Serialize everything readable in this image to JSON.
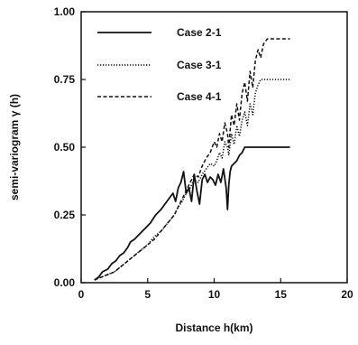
{
  "chart_data": {
    "type": "line",
    "xlabel": "Distance h(km)",
    "ylabel": "semi-variogram γ (h)",
    "xlim": [
      0,
      20
    ],
    "ylim": [
      0,
      1.0
    ],
    "x_ticks": [
      0,
      5,
      10,
      15,
      20
    ],
    "y_ticks": [
      0.0,
      0.25,
      0.5,
      0.75,
      1.0
    ],
    "x_tick_labels": [
      "0",
      "5",
      "10",
      "15",
      "20"
    ],
    "y_tick_labels": [
      "0.00",
      "0.25",
      "0.50",
      "0.75",
      "1.00"
    ],
    "grid": false,
    "legend_position": "top-left",
    "series": [
      {
        "name": "Case 2-1",
        "style": "solid",
        "color": "#111111",
        "x": [
          1.0,
          1.3,
          1.6,
          2.0,
          2.3,
          2.6,
          2.9,
          3.2,
          3.5,
          3.7,
          4.0,
          4.4,
          4.8,
          5.2,
          5.6,
          6.0,
          6.3,
          6.6,
          6.9,
          7.1,
          7.3,
          7.5,
          7.7,
          7.9,
          8.1,
          8.3,
          8.5,
          8.7,
          8.9,
          9.1,
          9.3,
          9.5,
          9.7,
          9.9,
          10.1,
          10.3,
          10.5,
          10.7,
          10.9,
          11.0,
          11.1,
          11.2,
          11.3,
          11.5,
          11.7,
          11.9,
          12.1,
          12.3,
          12.5,
          12.7,
          12.9,
          13.1,
          13.5,
          14.0,
          14.5,
          15.0,
          15.7
        ],
        "y": [
          0.01,
          0.02,
          0.04,
          0.05,
          0.07,
          0.08,
          0.1,
          0.11,
          0.13,
          0.15,
          0.16,
          0.18,
          0.2,
          0.22,
          0.25,
          0.27,
          0.29,
          0.31,
          0.33,
          0.3,
          0.35,
          0.37,
          0.41,
          0.33,
          0.35,
          0.3,
          0.4,
          0.34,
          0.29,
          0.38,
          0.4,
          0.37,
          0.39,
          0.38,
          0.36,
          0.4,
          0.37,
          0.42,
          0.35,
          0.27,
          0.36,
          0.41,
          0.43,
          0.44,
          0.45,
          0.47,
          0.48,
          0.5,
          0.5,
          0.5,
          0.5,
          0.5,
          0.5,
          0.5,
          0.5,
          0.5,
          0.5
        ]
      },
      {
        "name": "Case 3-1",
        "style": "dotted",
        "color": "#111111",
        "x": [
          1.0,
          1.5,
          2.0,
          2.5,
          3.0,
          3.5,
          4.0,
          4.5,
          5.0,
          5.5,
          6.0,
          6.5,
          7.0,
          7.3,
          7.6,
          7.9,
          8.2,
          8.5,
          8.8,
          9.1,
          9.4,
          9.7,
          10.0,
          10.2,
          10.4,
          10.6,
          10.8,
          11.0,
          11.1,
          11.3,
          11.5,
          11.7,
          11.9,
          12.1,
          12.3,
          12.5,
          12.7,
          12.9,
          13.1,
          13.3,
          13.5,
          14.0,
          14.5,
          15.0,
          15.7
        ],
        "y": [
          0.01,
          0.02,
          0.03,
          0.04,
          0.06,
          0.08,
          0.1,
          0.12,
          0.14,
          0.17,
          0.19,
          0.22,
          0.25,
          0.28,
          0.3,
          0.33,
          0.35,
          0.38,
          0.37,
          0.4,
          0.42,
          0.44,
          0.43,
          0.45,
          0.48,
          0.46,
          0.52,
          0.5,
          0.47,
          0.55,
          0.51,
          0.58,
          0.54,
          0.6,
          0.63,
          0.58,
          0.66,
          0.62,
          0.7,
          0.73,
          0.75,
          0.75,
          0.75,
          0.75,
          0.75
        ]
      },
      {
        "name": "Case 4-1",
        "style": "dashed",
        "color": "#111111",
        "x": [
          1.0,
          1.5,
          2.0,
          2.5,
          3.0,
          3.5,
          4.0,
          4.5,
          5.0,
          5.5,
          6.0,
          6.5,
          7.0,
          7.3,
          7.6,
          7.9,
          8.2,
          8.5,
          8.8,
          9.1,
          9.4,
          9.7,
          10.0,
          10.2,
          10.4,
          10.6,
          10.8,
          11.0,
          11.1,
          11.3,
          11.5,
          11.7,
          11.9,
          12.1,
          12.3,
          12.5,
          12.7,
          12.9,
          13.1,
          13.3,
          13.5,
          13.7,
          14.0,
          14.5,
          15.0,
          15.7
        ],
        "y": [
          0.01,
          0.02,
          0.03,
          0.04,
          0.06,
          0.08,
          0.1,
          0.12,
          0.14,
          0.16,
          0.19,
          0.22,
          0.25,
          0.28,
          0.31,
          0.34,
          0.37,
          0.4,
          0.39,
          0.43,
          0.46,
          0.48,
          0.52,
          0.5,
          0.55,
          0.52,
          0.59,
          0.55,
          0.5,
          0.62,
          0.58,
          0.66,
          0.6,
          0.7,
          0.74,
          0.67,
          0.78,
          0.72,
          0.82,
          0.86,
          0.83,
          0.88,
          0.9,
          0.9,
          0.9,
          0.9
        ]
      }
    ]
  }
}
